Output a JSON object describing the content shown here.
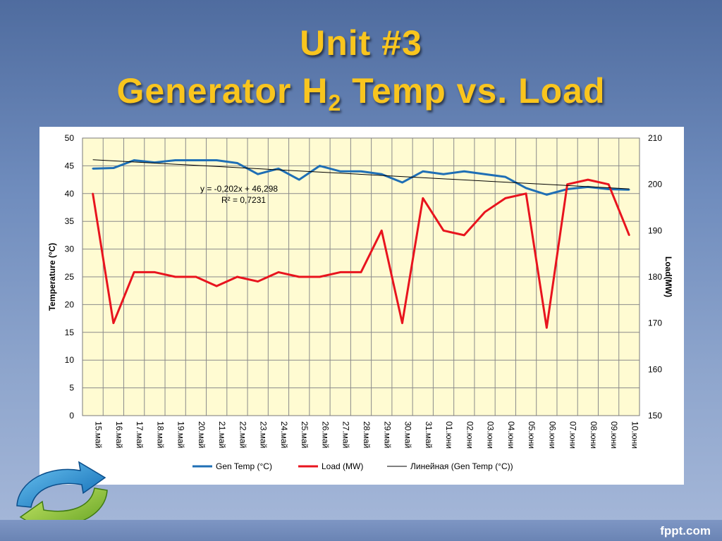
{
  "slide": {
    "title_line1": "Unit #3",
    "title_line2_pre": "Generator H",
    "title_line2_sub": "2",
    "title_line2_post": " Temp vs. Load",
    "brand": "fppt.com",
    "title_color": "#f9c51e"
  },
  "chart_data": {
    "type": "line",
    "categories": [
      "15.май",
      "16.май",
      "17.май",
      "18.май",
      "19.май",
      "20.май",
      "21.май",
      "22.май",
      "23.май",
      "24.май",
      "25.май",
      "26.май",
      "27.май",
      "28.май",
      "29.май",
      "30.май",
      "31.май",
      "01.юни",
      "02.юни",
      "03.юни",
      "04.юни",
      "05.юни",
      "06.юни",
      "07.юни",
      "08.юни",
      "09.юни",
      "10.юни"
    ],
    "series": [
      {
        "name": "Gen Temp (°C)",
        "axis": "left",
        "color": "#1f6fb5",
        "values": [
          44.5,
          44.6,
          46.0,
          45.6,
          46.0,
          46.0,
          46.0,
          45.5,
          43.5,
          44.5,
          42.5,
          45.0,
          44.0,
          44.0,
          43.5,
          42.0,
          44.0,
          43.5,
          44.0,
          43.5,
          43.0,
          41.0,
          39.8,
          40.8,
          41.2,
          40.8,
          40.7
        ]
      },
      {
        "name": "Load (MW)",
        "axis": "right",
        "color": "#e8141e",
        "values": [
          198,
          170,
          181,
          181,
          180,
          180,
          178,
          180,
          179,
          181,
          180,
          180,
          181,
          181,
          190,
          170,
          197,
          190,
          189,
          194,
          197,
          198,
          169,
          200,
          201,
          200,
          189
        ]
      },
      {
        "name": "Линейная (Gen Temp (°C))",
        "axis": "left",
        "color": "#000000",
        "trend": true,
        "slope": -0.202,
        "intercept": 46.298
      }
    ],
    "trend_equation": "y = -0,202x + 46,298",
    "trend_r2": "R² = 0,7231",
    "ylabel": "Temperature (°C)",
    "y2label": "Load(MW)",
    "ylim": [
      0,
      50
    ],
    "y_ticks": [
      "0",
      "5",
      "10",
      "15",
      "20",
      "25",
      "30",
      "35",
      "40",
      "45",
      "50"
    ],
    "y2lim": [
      150,
      210
    ],
    "y2_ticks": [
      "150",
      "160",
      "170",
      "180",
      "190",
      "200",
      "210"
    ],
    "grid": true,
    "legend_position": "bottom",
    "plot_background": "#fffbd2"
  }
}
